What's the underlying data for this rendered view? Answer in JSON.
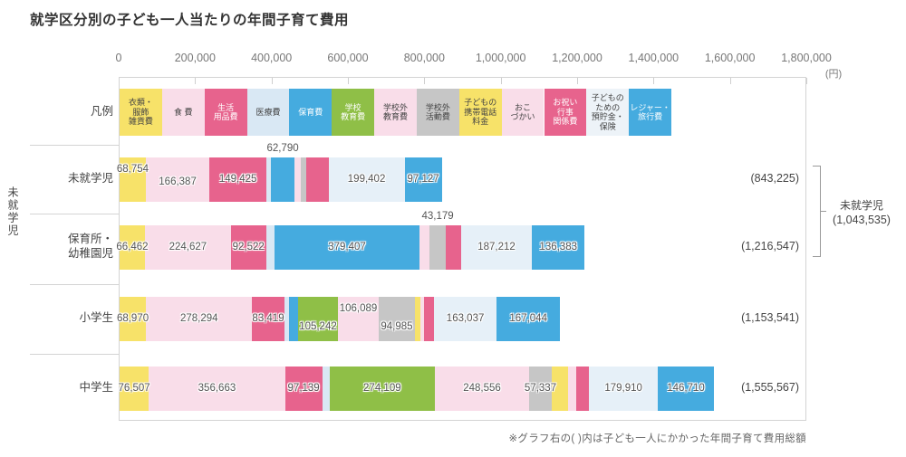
{
  "title": "就学区分別の子ども一人当たりの年間子育て費用",
  "axis": {
    "tick_labels": [
      "0",
      "200,000",
      "400,000",
      "600,000",
      "800,000",
      "1,000,000",
      "1,200,000",
      "1,400,000",
      "1,600,000",
      "1,800,000"
    ],
    "tick_values": [
      0,
      200000,
      400000,
      600000,
      800000,
      1000000,
      1200000,
      1400000,
      1600000,
      1800000
    ],
    "unit_label": "(円)"
  },
  "legend": {
    "row_label": "凡例",
    "items": [
      {
        "category": "衣類・服飾雑貨費",
        "label_lines": [
          "衣類・",
          "服飾",
          "雑貨費"
        ],
        "color": "#F7E269",
        "text_color": "#444"
      },
      {
        "category": "食費",
        "label_lines": [
          "食 費"
        ],
        "color": "#F9DDE9",
        "text_color": "#444"
      },
      {
        "category": "生活用品費",
        "label_lines": [
          "生活",
          "用品費"
        ],
        "color": "#E7638D",
        "text_color": "#fff"
      },
      {
        "category": "医療費",
        "label_lines": [
          "医療費"
        ],
        "color": "#D9E8F4",
        "text_color": "#444"
      },
      {
        "category": "保育費",
        "label_lines": [
          "保育費"
        ],
        "color": "#45ABDF",
        "text_color": "#fff"
      },
      {
        "category": "学校教育費",
        "label_lines": [
          "学校",
          "教育費"
        ],
        "color": "#8FBF47",
        "text_color": "#fff"
      },
      {
        "category": "学校外教育費",
        "label_lines": [
          "学校外",
          "教育費"
        ],
        "color": "#F9DDE9",
        "text_color": "#444"
      },
      {
        "category": "学校外活動費",
        "label_lines": [
          "学校外",
          "活動費"
        ],
        "color": "#C6C6C6",
        "text_color": "#444"
      },
      {
        "category": "子どもの携帯電話料金",
        "label_lines": [
          "子どもの",
          "携帯電話",
          "料金"
        ],
        "color": "#F7E269",
        "text_color": "#444"
      },
      {
        "category": "おこづかい",
        "label_lines": [
          "おこ",
          "づかい"
        ],
        "color": "#F9DDE9",
        "text_color": "#444"
      },
      {
        "category": "お祝い行事関係費",
        "label_lines": [
          "お祝い",
          "行事",
          "関係費"
        ],
        "color": "#E7638D",
        "text_color": "#fff"
      },
      {
        "category": "子どものための預貯金・保険",
        "label_lines": [
          "子どもの",
          "ための",
          "預貯金・",
          "保険"
        ],
        "color": "#EDF3F8",
        "text_color": "#444"
      },
      {
        "category": "レジャー・旅行費",
        "label_lines": [
          "レジャー・",
          "旅行費"
        ],
        "color": "#45ABDF",
        "text_color": "#fff"
      }
    ]
  },
  "side_group_label": "未就学児",
  "right_bracket": {
    "label_line1": "未就学児",
    "label_line2": "(1,043,535)"
  },
  "footnote": "※グラフ右の( )内は子ども一人にかかった年間子育て費用総額",
  "chart_data": {
    "type": "bar",
    "stacked": true,
    "orientation": "horizontal",
    "xlim": [
      0,
      1800000
    ],
    "grid": false,
    "legend_position": "top-row",
    "categories": [
      "衣類・服飾雑貨費",
      "食費",
      "生活用品費",
      "医療費",
      "保育費",
      "学校教育費",
      "学校外教育費",
      "学校外活動費",
      "子どもの携帯電話料金",
      "おこづかい",
      "お祝い行事関係費",
      "子どものための預貯金・保険",
      "レジャー・旅行費"
    ],
    "palette": {
      "衣類・服飾雑貨費": "#F7E269",
      "食費": "#F9DDE9",
      "生活用品費": "#E7638D",
      "医療費": "#D9E8F4",
      "保育費": "#45ABDF",
      "学校教育費": "#8FBF47",
      "学校外教育費": "#F9DDE9",
      "学校外活動費": "#C6C6C6",
      "子どもの携帯電話料金": "#F7E269",
      "おこづかい": "#F9DDE9",
      "お祝い行事関係費": "#E7638D",
      "子どものための預貯金・保険": "#E6F0F8",
      "レジャー・旅行費": "#45ABDF"
    },
    "rows": [
      {
        "label_lines": [
          "未就学児"
        ],
        "total": 843225,
        "total_label": "(843,225)",
        "segments": [
          {
            "category": "衣類・服飾雑貨費",
            "value": 68754,
            "label": "68,754",
            "label_pos": "high",
            "estimated": false
          },
          {
            "category": "食費",
            "value": 166387,
            "label": "166,387",
            "label_pos": "midlow",
            "estimated": false
          },
          {
            "category": "生活用品費",
            "value": 149425,
            "label": "149,425",
            "label_pos": "mid",
            "estimated": false
          },
          {
            "category": "医療費",
            "value": 11000,
            "label": null,
            "estimated": true
          },
          {
            "category": "保育費",
            "value": 62790,
            "label": "62,790",
            "label_pos": "above",
            "estimated": false
          },
          {
            "category": "学校外教育費",
            "value": 16000,
            "label": null,
            "estimated": true
          },
          {
            "category": "学校外活動費",
            "value": 15000,
            "label": null,
            "estimated": true
          },
          {
            "category": "お祝い行事関係費",
            "value": 57340,
            "label": null,
            "estimated": true
          },
          {
            "category": "子どものための預貯金・保険",
            "value": 199402,
            "label": "199,402",
            "label_pos": "mid",
            "estimated": false
          },
          {
            "category": "レジャー・旅行費",
            "value": 97127,
            "label": "97,127",
            "label_pos": "mid",
            "estimated": false
          }
        ]
      },
      {
        "label_lines": [
          "保育所・",
          "幼稚園児"
        ],
        "total": 1216547,
        "total_label": "(1,216,547)",
        "segments": [
          {
            "category": "衣類・服飾雑貨費",
            "value": 66462,
            "label": "66,462",
            "label_pos": "mid",
            "estimated": false
          },
          {
            "category": "食費",
            "value": 224627,
            "label": "224,627",
            "label_pos": "mid",
            "estimated": false
          },
          {
            "category": "生活用品費",
            "value": 92522,
            "label": "92,522",
            "label_pos": "mid",
            "estimated": false
          },
          {
            "category": "医療費",
            "value": 22000,
            "label": null,
            "estimated": true
          },
          {
            "category": "保育費",
            "value": 379407,
            "label": "379,407",
            "label_pos": "mid",
            "estimated": false
          },
          {
            "category": "学校外教育費",
            "value": 26000,
            "label": null,
            "estimated": true
          },
          {
            "category": "学校外活動費",
            "value": 43179,
            "label": "43,179",
            "label_pos": "above",
            "estimated": false
          },
          {
            "category": "お祝い行事関係費",
            "value": 38755,
            "label": null,
            "estimated": true
          },
          {
            "category": "子どものための預貯金・保険",
            "value": 187212,
            "label": "187,212",
            "label_pos": "mid",
            "estimated": false
          },
          {
            "category": "レジャー・旅行費",
            "value": 136383,
            "label": "136,383",
            "label_pos": "mid",
            "estimated": false
          }
        ]
      },
      {
        "label_lines": [
          "小学生"
        ],
        "total": 1153541,
        "total_label": "(1,153,541)",
        "segments": [
          {
            "category": "衣類・服飾雑貨費",
            "value": 68970,
            "label": "68,970",
            "label_pos": "mid",
            "estimated": false
          },
          {
            "category": "食費",
            "value": 278294,
            "label": "278,294",
            "label_pos": "mid",
            "estimated": false
          },
          {
            "category": "生活用品費",
            "value": 83419,
            "label": "83,419",
            "label_pos": "mid",
            "estimated": false
          },
          {
            "category": "医療費",
            "value": 12000,
            "label": null,
            "estimated": true
          },
          {
            "category": "保育費",
            "value": 24000,
            "label": null,
            "estimated": true
          },
          {
            "category": "学校教育費",
            "value": 105242,
            "label": "105,242",
            "label_pos": "low",
            "estimated": false
          },
          {
            "category": "学校外教育費",
            "value": 106089,
            "label": "106,089",
            "label_pos": "high",
            "estimated": false
          },
          {
            "category": "学校外活動費",
            "value": 94985,
            "label": "94,985",
            "label_pos": "low",
            "estimated": false
          },
          {
            "category": "子どもの携帯電話料金",
            "value": 15000,
            "label": null,
            "estimated": true
          },
          {
            "category": "おこづかい",
            "value": 8000,
            "label": null,
            "estimated": true
          },
          {
            "category": "お祝い行事関係費",
            "value": 27461,
            "label": null,
            "estimated": true
          },
          {
            "category": "子どものための預貯金・保険",
            "value": 163037,
            "label": "163,037",
            "label_pos": "mid",
            "estimated": false
          },
          {
            "category": "レジャー・旅行費",
            "value": 167044,
            "label": "167,044",
            "label_pos": "mid",
            "estimated": false
          }
        ]
      },
      {
        "label_lines": [
          "中学生"
        ],
        "total": 1555567,
        "total_label": "(1,555,567)",
        "segments": [
          {
            "category": "衣類・服飾雑貨費",
            "value": 76507,
            "label": "76,507",
            "label_pos": "mid",
            "estimated": false
          },
          {
            "category": "食費",
            "value": 356663,
            "label": "356,663",
            "label_pos": "mid",
            "estimated": false
          },
          {
            "category": "生活用品費",
            "value": 97139,
            "label": "97,139",
            "label_pos": "mid",
            "estimated": false
          },
          {
            "category": "医療費",
            "value": 20000,
            "label": null,
            "estimated": true
          },
          {
            "category": "学校教育費",
            "value": 274109,
            "label": "274,109",
            "label_pos": "mid",
            "estimated": false
          },
          {
            "category": "学校外教育費",
            "value": 248556,
            "label": "248,556",
            "label_pos": "mid",
            "estimated": false
          },
          {
            "category": "学校外活動費",
            "value": 57337,
            "label": "57,337",
            "label_pos": "mid",
            "estimated": false
          },
          {
            "category": "子どもの携帯電話料金",
            "value": 44000,
            "label": null,
            "estimated": true
          },
          {
            "category": "おこづかい",
            "value": 21000,
            "label": null,
            "estimated": true
          },
          {
            "category": "お祝い行事関係費",
            "value": 33636,
            "label": null,
            "estimated": true
          },
          {
            "category": "子どものための預貯金・保険",
            "value": 179910,
            "label": "179,910",
            "label_pos": "mid",
            "estimated": false
          },
          {
            "category": "レジャー・旅行費",
            "value": 146710,
            "label": "146,710",
            "label_pos": "mid",
            "estimated": false
          }
        ]
      }
    ]
  }
}
